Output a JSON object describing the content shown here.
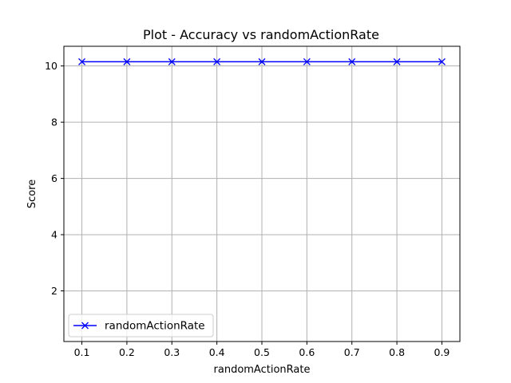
{
  "chart_data": {
    "type": "line",
    "title": "Plot - Accuracy vs randomActionRate",
    "xlabel": "randomActionRate",
    "ylabel": "Score",
    "x": [
      0.1,
      0.2,
      0.3,
      0.4,
      0.5,
      0.6,
      0.7,
      0.8,
      0.9
    ],
    "x_ticks": [
      "0.1",
      "0.2",
      "0.3",
      "0.4",
      "0.5",
      "0.6",
      "0.7",
      "0.8",
      "0.9"
    ],
    "y_ticks": [
      "2",
      "4",
      "6",
      "8",
      "10"
    ],
    "xlim": [
      0.06,
      0.94
    ],
    "ylim": [
      0.2,
      10.7
    ],
    "grid": true,
    "legend_position": "lower-left",
    "series": [
      {
        "name": "randomActionRate",
        "values": [
          10.15,
          10.15,
          10.15,
          10.15,
          10.15,
          10.15,
          10.15,
          10.15,
          10.15
        ],
        "color": "#0000ff",
        "marker": "x"
      }
    ]
  }
}
